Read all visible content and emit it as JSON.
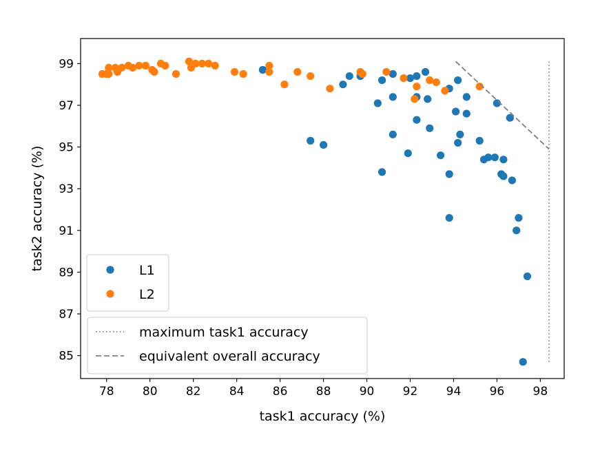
{
  "chart_data": {
    "type": "scatter",
    "title": "",
    "xlabel": "task1 accuracy (%)",
    "ylabel": "task2 accuracy (%)",
    "xlim": [
      76.8,
      99.1
    ],
    "ylim": [
      83.9,
      100.2
    ],
    "xticks": [
      78,
      80,
      82,
      84,
      86,
      88,
      90,
      92,
      94,
      96,
      98
    ],
    "yticks": [
      85,
      87,
      89,
      91,
      93,
      95,
      97,
      99
    ],
    "grid": false,
    "series": [
      {
        "name": "L1",
        "color": "#1f77b4",
        "points": [
          [
            85.2,
            98.7
          ],
          [
            87.4,
            95.3
          ],
          [
            88.0,
            95.1
          ],
          [
            88.9,
            98.0
          ],
          [
            89.2,
            98.4
          ],
          [
            89.7,
            98.4
          ],
          [
            90.5,
            97.1
          ],
          [
            90.7,
            98.2
          ],
          [
            90.7,
            93.8
          ],
          [
            91.2,
            98.5
          ],
          [
            91.2,
            97.4
          ],
          [
            91.2,
            95.6
          ],
          [
            91.9,
            94.7
          ],
          [
            92.0,
            98.3
          ],
          [
            92.3,
            98.4
          ],
          [
            92.3,
            97.4
          ],
          [
            92.3,
            96.3
          ],
          [
            92.7,
            98.6
          ],
          [
            92.8,
            97.3
          ],
          [
            92.9,
            95.9
          ],
          [
            93.4,
            94.6
          ],
          [
            93.8,
            97.8
          ],
          [
            93.8,
            93.7
          ],
          [
            93.8,
            91.6
          ],
          [
            94.2,
            98.2
          ],
          [
            94.1,
            96.7
          ],
          [
            94.2,
            95.2
          ],
          [
            94.3,
            95.6
          ],
          [
            94.6,
            97.4
          ],
          [
            94.6,
            96.6
          ],
          [
            95.2,
            95.3
          ],
          [
            95.4,
            94.4
          ],
          [
            95.6,
            94.5
          ],
          [
            95.9,
            94.5
          ],
          [
            96.0,
            97.1
          ],
          [
            96.2,
            93.7
          ],
          [
            96.3,
            94.4
          ],
          [
            96.3,
            93.6
          ],
          [
            96.6,
            96.4
          ],
          [
            96.7,
            93.4
          ],
          [
            96.9,
            91.0
          ],
          [
            97.0,
            91.6
          ],
          [
            97.4,
            88.8
          ],
          [
            97.2,
            84.7
          ]
        ]
      },
      {
        "name": "L2",
        "color": "#ff7f0e",
        "points": [
          [
            77.8,
            98.5
          ],
          [
            78.0,
            98.5
          ],
          [
            78.1,
            98.5
          ],
          [
            78.1,
            98.8
          ],
          [
            78.4,
            98.8
          ],
          [
            78.5,
            98.6
          ],
          [
            78.7,
            98.8
          ],
          [
            79.0,
            98.9
          ],
          [
            79.2,
            98.8
          ],
          [
            79.5,
            98.9
          ],
          [
            79.8,
            98.9
          ],
          [
            80.1,
            98.7
          ],
          [
            80.2,
            98.6
          ],
          [
            80.5,
            99.0
          ],
          [
            80.7,
            98.9
          ],
          [
            81.2,
            98.5
          ],
          [
            81.8,
            99.1
          ],
          [
            81.9,
            98.8
          ],
          [
            82.1,
            99.0
          ],
          [
            82.4,
            99.0
          ],
          [
            82.7,
            99.0
          ],
          [
            83.0,
            98.9
          ],
          [
            83.9,
            98.6
          ],
          [
            84.3,
            98.5
          ],
          [
            85.5,
            98.9
          ],
          [
            85.5,
            98.6
          ],
          [
            86.2,
            98.0
          ],
          [
            86.8,
            98.6
          ],
          [
            87.4,
            98.4
          ],
          [
            88.3,
            97.8
          ],
          [
            89.7,
            98.6
          ],
          [
            89.8,
            98.5
          ],
          [
            90.9,
            98.6
          ],
          [
            91.7,
            98.3
          ],
          [
            92.2,
            97.3
          ],
          [
            92.3,
            97.9
          ],
          [
            92.9,
            98.2
          ],
          [
            93.2,
            98.1
          ],
          [
            93.6,
            97.7
          ],
          [
            95.2,
            97.9
          ]
        ]
      }
    ],
    "reference_lines": [
      {
        "label": "maximum task1 accuracy",
        "style": "dotted",
        "color": "#808080",
        "points": [
          [
            98.4,
            84.7
          ],
          [
            98.4,
            99.1
          ]
        ]
      },
      {
        "label": "equivalent overall accuracy",
        "style": "dashed",
        "color": "#808080",
        "points": [
          [
            94.1,
            99.1
          ],
          [
            98.4,
            94.9
          ]
        ]
      }
    ],
    "legends": [
      {
        "placement": "center-left",
        "entries": [
          "L1",
          "L2"
        ]
      },
      {
        "placement": "lower-left",
        "entries": [
          "maximum task1 accuracy",
          "equivalent overall accuracy"
        ]
      }
    ]
  }
}
